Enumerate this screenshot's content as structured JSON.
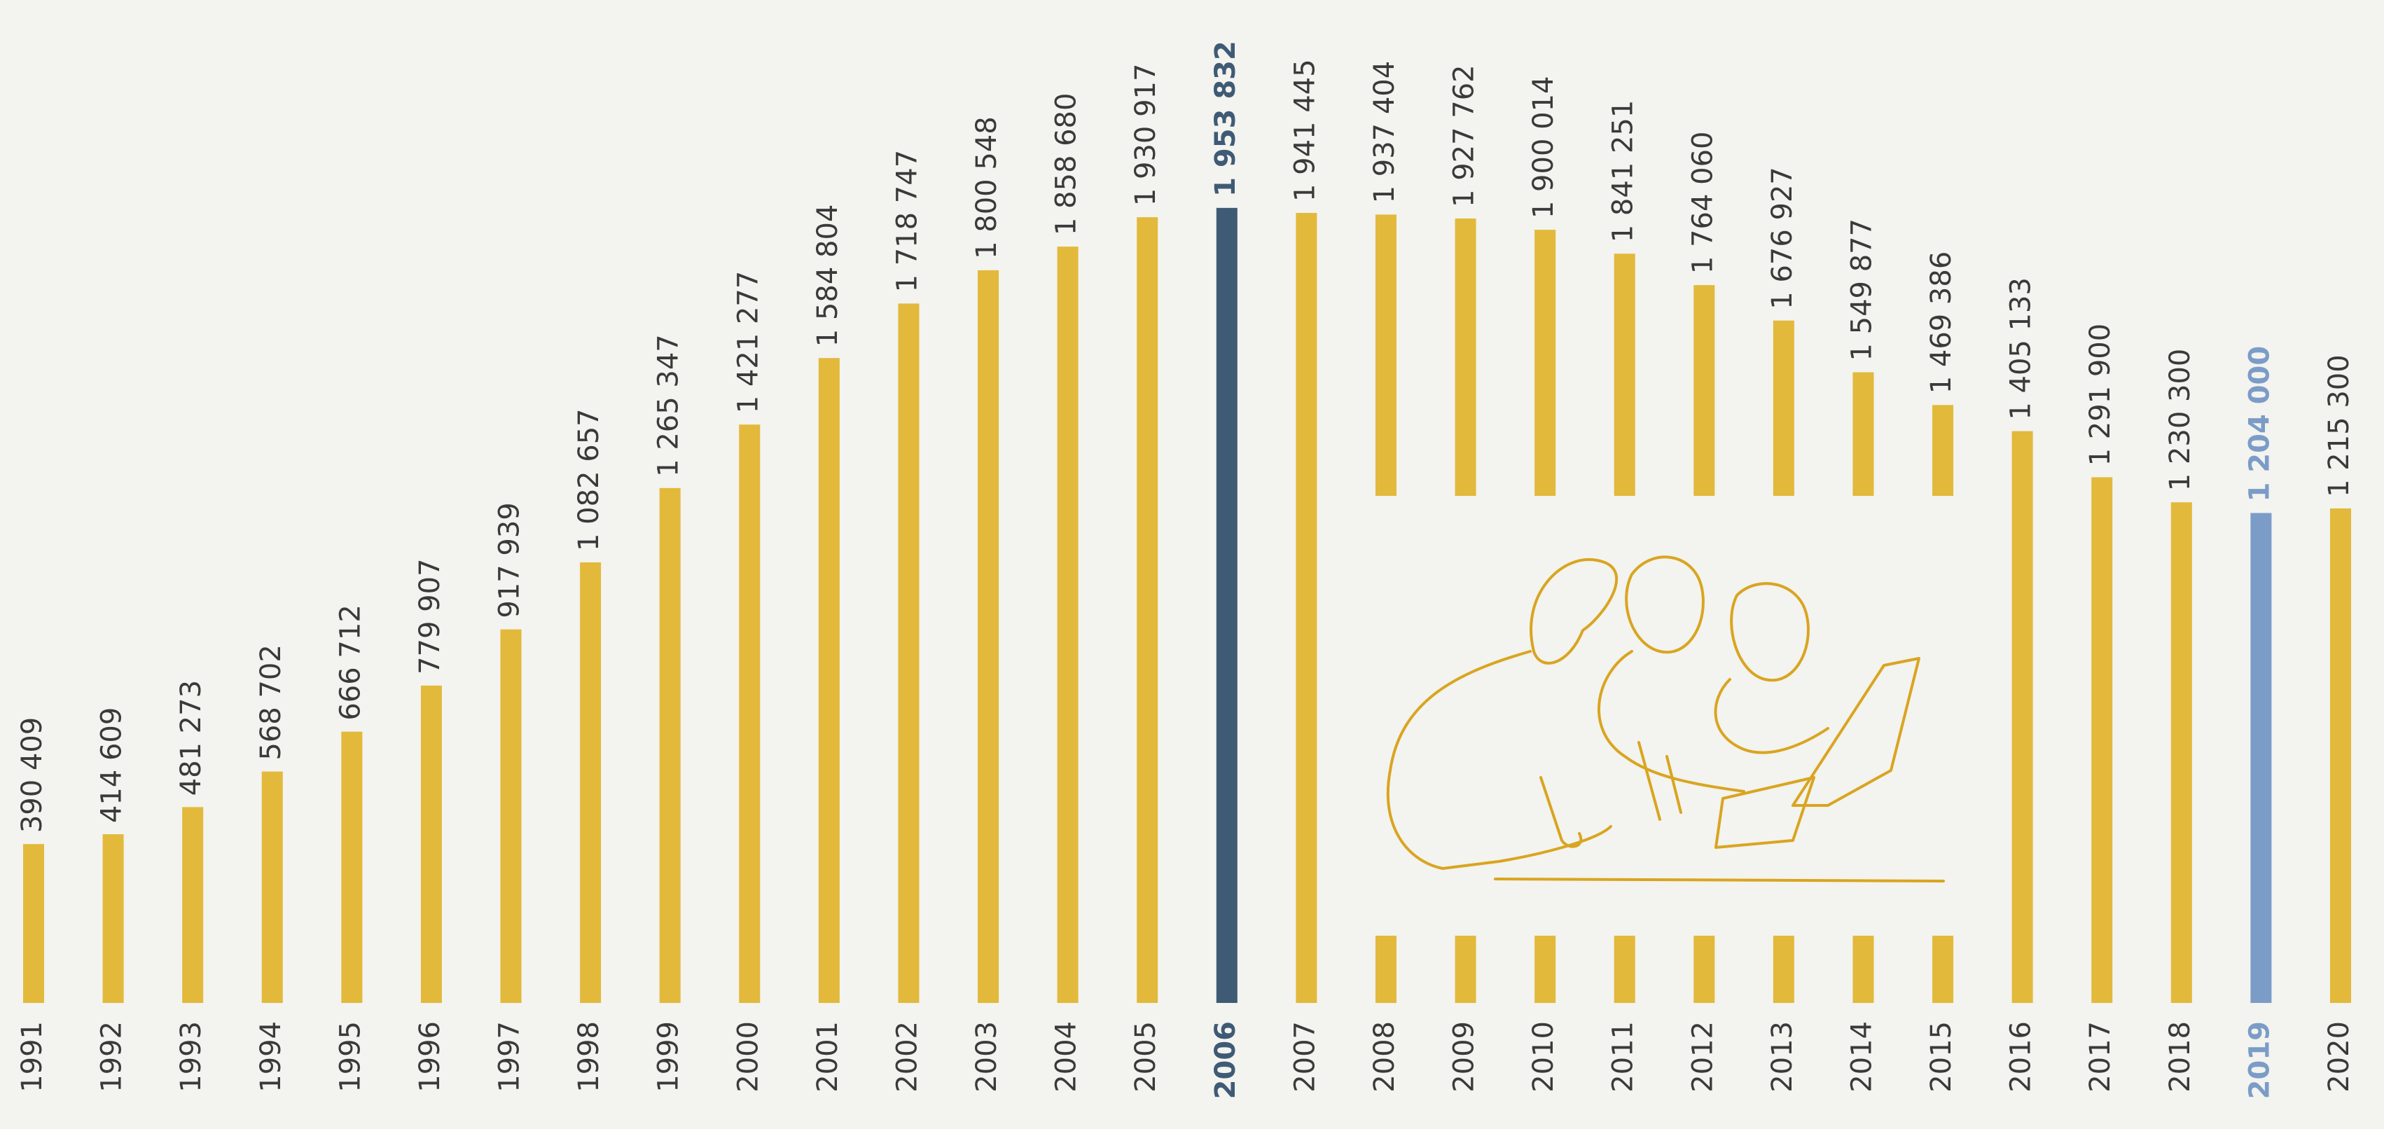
{
  "chart_data": {
    "type": "bar",
    "categories": [
      "1991",
      "1992",
      "1993",
      "1994",
      "1995",
      "1996",
      "1997",
      "1998",
      "1999",
      "2000",
      "2001",
      "2002",
      "2003",
      "2004",
      "2005",
      "2006",
      "2007",
      "2008",
      "2009",
      "2010",
      "2011",
      "2012",
      "2013",
      "2014",
      "2015",
      "2016",
      "2017",
      "2018",
      "2019",
      "2020"
    ],
    "values": [
      390409,
      414609,
      481273,
      568702,
      666712,
      779907,
      917939,
      1082657,
      1265347,
      1421277,
      1584804,
      1718747,
      1800548,
      1858680,
      1930917,
      1953832,
      1941445,
      1937404,
      1927762,
      1900014,
      1841251,
      1764060,
      1676927,
      1549877,
      1469386,
      1405133,
      1291900,
      1230300,
      1204000,
      1215300
    ],
    "value_labels": [
      "390 409",
      "414 609",
      "481 273",
      "568 702",
      "666 712",
      "779 907",
      "917 939",
      "1 082 657",
      "1 265 347",
      "1 421 277",
      "1 584 804",
      "1 718 747",
      "1 800 548",
      "1 858 680",
      "1 930 917",
      "1 953 832",
      "1 941 445",
      "1 937 404",
      "1 927 762",
      "1 900 014",
      "1 841 251",
      "1 764 060",
      "1 676 927",
      "1 549 877",
      "1 469 386",
      "1 405 133",
      "1 291 900",
      "1 230 300",
      "1 204 000",
      "1 215 300"
    ],
    "color": "#e2b93b",
    "colors": [
      "#e2b93b",
      "#e2b93b",
      "#e2b93b",
      "#e2b93b",
      "#e2b93b",
      "#e2b93b",
      "#e2b93b",
      "#e2b93b",
      "#e2b93b",
      "#e2b93b",
      "#e2b93b",
      "#e2b93b",
      "#e2b93b",
      "#e2b93b",
      "#e2b93b",
      "#3f5a75",
      "#e2b93b",
      "#e2b93b",
      "#e2b93b",
      "#e2b93b",
      "#e2b93b",
      "#e2b93b",
      "#e2b93b",
      "#e2b93b",
      "#e2b93b",
      "#e2b93b",
      "#e2b93b",
      "#e2b93b",
      "#7b9cc7",
      "#e2b93b"
    ],
    "ylim": [
      0,
      2000000
    ]
  }
}
